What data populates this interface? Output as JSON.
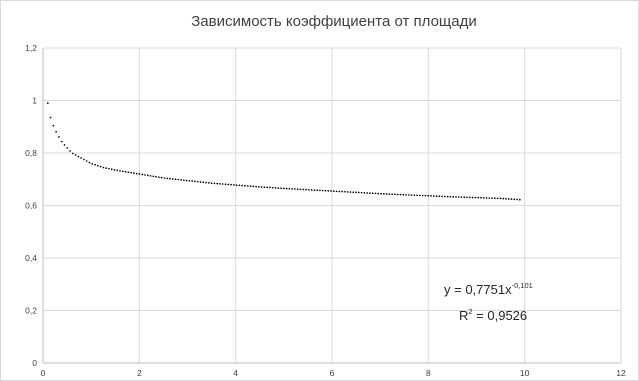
{
  "chart_data": {
    "type": "scatter",
    "title": "Зависимость коэффициента от площади",
    "xlabel": "",
    "ylabel": "",
    "xlim": [
      0,
      12
    ],
    "ylim": [
      0,
      1.2
    ],
    "x_ticks": [
      0,
      2,
      4,
      6,
      8,
      10,
      12
    ],
    "x_tick_labels": [
      "0",
      "2",
      "4",
      "6",
      "8",
      "10",
      "12"
    ],
    "y_ticks": [
      0,
      0.2,
      0.4,
      0.6,
      0.8,
      1,
      1.2
    ],
    "y_tick_labels": [
      "0",
      "0,2",
      "0,4",
      "0,6",
      "0,8",
      "1",
      "1,2"
    ],
    "grid": true,
    "legend": "none",
    "series": [
      {
        "color": "#000000",
        "marker": "dot",
        "x": [
          0.1,
          0.15,
          0.2,
          0.3,
          0.4,
          0.5,
          0.6,
          0.8,
          1,
          1.25,
          1.5,
          2,
          2.5,
          3,
          3.5,
          4,
          4.5,
          5,
          5.5,
          6,
          6.5,
          7,
          7.5,
          8,
          8.5,
          9,
          9.5,
          9.9
        ],
        "y": [
          0.99,
          0.94,
          0.91,
          0.87,
          0.84,
          0.82,
          0.8,
          0.78,
          0.76,
          0.745,
          0.735,
          0.72,
          0.705,
          0.695,
          0.685,
          0.678,
          0.671,
          0.665,
          0.66,
          0.655,
          0.65,
          0.645,
          0.641,
          0.637,
          0.633,
          0.63,
          0.627,
          0.622
        ]
      }
    ],
    "trendline": {
      "type": "power",
      "a": 0.7751,
      "b": -0.101,
      "color": "#000000",
      "equation_base": "y = 0,7751x",
      "equation_exponent": "-0,101",
      "r2_base": "R",
      "r2_sup": "2",
      "r2_rest": " = 0,9526"
    }
  }
}
